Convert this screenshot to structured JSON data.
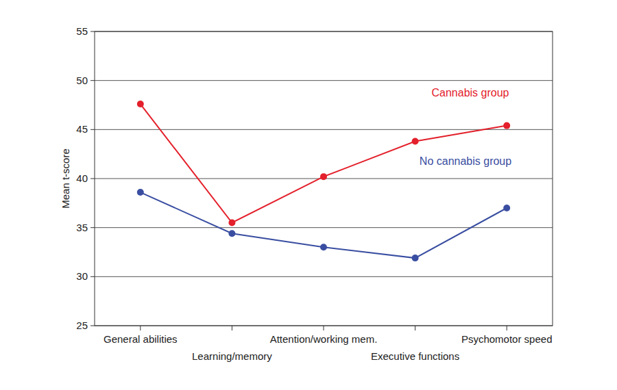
{
  "chart_data": {
    "type": "line",
    "y_label": "Mean t-score",
    "categories": [
      "General abilities",
      "Learning/memory",
      "Attention/working mem.",
      "Executive functions",
      "Psychomotor speed"
    ],
    "series": [
      {
        "name": "Cannabis group",
        "color": "#e3202b",
        "values": [
          47.6,
          35.5,
          40.2,
          43.8,
          45.4
        ],
        "marker": "circle",
        "line_style": "solid"
      },
      {
        "name": "No cannabis group",
        "color": "#3a4ea1",
        "values": [
          38.6,
          34.4,
          33.0,
          31.9,
          37.0
        ],
        "marker": "circle",
        "line_style": "solid"
      }
    ],
    "ylim": [
      25,
      55
    ],
    "yticks": [
      25,
      30,
      35,
      40,
      45,
      50,
      55
    ],
    "grid": true
  }
}
